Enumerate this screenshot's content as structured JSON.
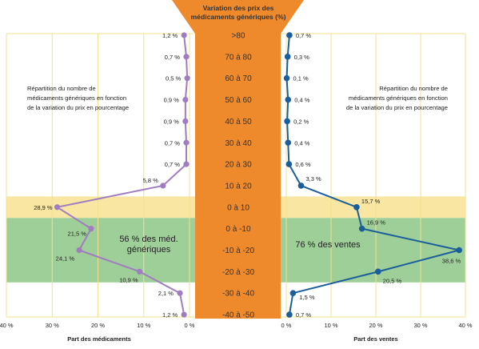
{
  "chart_data": {
    "type": "line",
    "header": [
      "Variation des prix des",
      "médicaments génériques (%)"
    ],
    "bins": [
      ">80",
      "70 à 80",
      "60 à 70",
      "50 à 60",
      "40 à 50",
      "30 à 40",
      "20 à 30",
      "10 à 20",
      "0 à 10",
      "0 à -10",
      "-10 à -20",
      "-20 à -30",
      "-30 à -40",
      "-40 à -50"
    ],
    "left": {
      "xlabel": "Part des médicaments",
      "annotation": [
        "Répartition du nombre de",
        "médicaments génériques en fonction",
        "de la variation du prix en pourcentage"
      ],
      "values": [
        1.2,
        0.7,
        0.5,
        0.9,
        0.9,
        0.7,
        0.7,
        5.8,
        28.9,
        21.5,
        24.1,
        10.9,
        2.1,
        1.2
      ],
      "labels": [
        "1,2 %",
        "0,7 %",
        "0,5 %",
        "0,9 %",
        "0,9 %",
        "0,7 %",
        "0,7 %",
        "5,8 %",
        "28,9 %",
        "21,5 %",
        "24,1 %",
        "10,9 %",
        "2,1 %",
        "1,2 %"
      ],
      "xlim": [
        0,
        40
      ],
      "ticks": [
        "40 %",
        "30 %",
        "20 %",
        "10 %",
        "0 %"
      ],
      "color": "#a07cc0",
      "zone_label": [
        "56 % des méd.",
        "génériques"
      ]
    },
    "right": {
      "xlabel": "Part des ventes",
      "annotation": [
        "Répartition du nombre de",
        "médicaments génériques en fonction",
        "de la variation du prix en pourcentage"
      ],
      "values": [
        0.7,
        0.3,
        0.1,
        0.4,
        0.2,
        0.4,
        0.6,
        3.3,
        15.7,
        16.9,
        38.6,
        20.5,
        1.5,
        0.7
      ],
      "labels": [
        "0,7 %",
        "0,3 %",
        "0,1 %",
        "0,4 %",
        "0,2 %",
        "0,4 %",
        "0,6 %",
        "3,3 %",
        "15,7 %",
        "16,9 %",
        "38,6 %",
        "20,5 %",
        "1,5 %",
        "0,7 %"
      ],
      "xlim": [
        0,
        40
      ],
      "ticks": [
        "0 %",
        "10 %",
        "20 %",
        "30 %",
        "40 %"
      ],
      "color": "#1b5e9c",
      "zone_label": [
        "76 % des ventes"
      ]
    },
    "colors": {
      "center_band": "#ef8a2c",
      "highlight_yellow": "#f8e6a2",
      "highlight_green": "#9fcf98",
      "grid": "#f0e28e"
    }
  }
}
